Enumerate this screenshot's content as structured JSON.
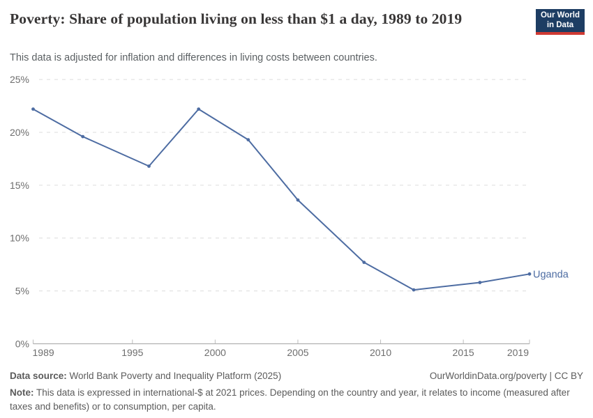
{
  "header": {
    "title": "Poverty: Share of population living on less than $1 a day, 1989 to 2019",
    "subtitle": "This data is adjusted for inflation and differences in living costs between countries.",
    "logo_line1": "Our World",
    "logo_line2": "in Data"
  },
  "chart_data": {
    "type": "line",
    "title": "Poverty: Share of population living on less than $1 a day, 1989 to 2019",
    "xlabel": "",
    "ylabel": "",
    "xlim": [
      1989,
      2019
    ],
    "ylim": [
      0,
      25
    ],
    "x_ticks": [
      1989,
      1995,
      2000,
      2005,
      2010,
      2015,
      2019
    ],
    "y_ticks": [
      0,
      5,
      10,
      15,
      20,
      25
    ],
    "y_tick_suffix": "%",
    "grid": "horizontal-dashed",
    "legend_position": "end-of-line-label",
    "series": [
      {
        "name": "Uganda",
        "x": [
          1989,
          1992,
          1996,
          1999,
          2002,
          2005,
          2009,
          2012,
          2016,
          2019
        ],
        "values": [
          22.2,
          19.6,
          16.8,
          22.2,
          19.3,
          13.6,
          7.7,
          5.1,
          5.8,
          6.6
        ]
      }
    ]
  },
  "colors": {
    "line": "#4d6ca2",
    "grid_dashed": "#dcdcdc",
    "axis": "#a3a3a3",
    "tick": "#bbbbbb",
    "tick_label": "#6e6e6e",
    "logo_bg": "#1d3d63",
    "logo_bar": "#cf3a33"
  },
  "footer": {
    "source_label": "Data source:",
    "source_text": " World Bank Poverty and Inequality Platform (2025)",
    "attribution": "OurWorldinData.org/poverty | CC BY",
    "note_label": "Note:",
    "note_text": " This data is expressed in international-$ at 2021 prices. Depending on the country and year, it relates to income (measured after taxes and benefits) or to consumption, per capita."
  }
}
